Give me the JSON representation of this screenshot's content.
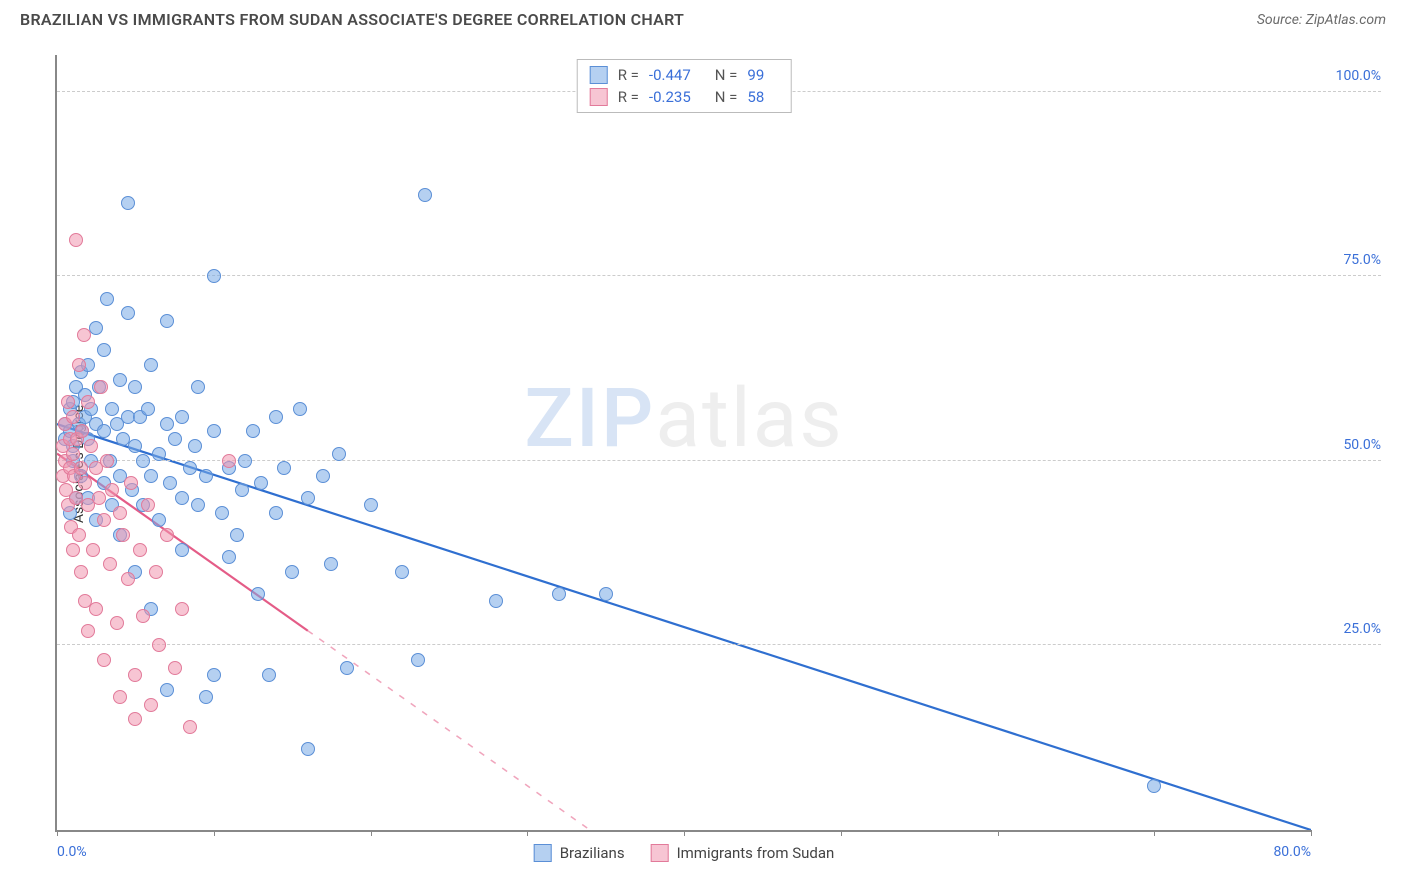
{
  "title": "BRAZILIAN VS IMMIGRANTS FROM SUDAN ASSOCIATE'S DEGREE CORRELATION CHART",
  "source": "Source: ZipAtlas.com",
  "ylabel": "Associate's Degree",
  "watermark_a": "ZIP",
  "watermark_b": "atlas",
  "chart": {
    "type": "scatter",
    "xlim": [
      0,
      80
    ],
    "ylim": [
      0,
      105
    ],
    "xticks": [
      0,
      10,
      20,
      30,
      40,
      50,
      60,
      70,
      80
    ],
    "xlabels_shown": {
      "0": "0.0%",
      "80": "80.0%"
    },
    "yticks": [
      25,
      50,
      75,
      100
    ],
    "ylabels": {
      "25": "25.0%",
      "50": "50.0%",
      "75": "75.0%",
      "100": "100.0%"
    },
    "background": "#ffffff",
    "grid_color": "#cccccc",
    "axis_color": "#888888",
    "tick_label_color": "#3a6fd8",
    "series": [
      {
        "name": "Brazilians",
        "color_fill": "rgba(120,170,230,0.55)",
        "color_stroke": "#5b8fd6",
        "marker_size": 14,
        "trend": {
          "x1": 0,
          "y1": 55,
          "x2": 80,
          "y2": 0,
          "solid_until_x": 80,
          "color": "#2f6fd0",
          "width": 2.2
        },
        "R": "-0.447",
        "N": "99",
        "points": [
          [
            0.5,
            55
          ],
          [
            0.5,
            53
          ],
          [
            0.8,
            57
          ],
          [
            0.8,
            54
          ],
          [
            1,
            58
          ],
          [
            1,
            52
          ],
          [
            1,
            50
          ],
          [
            1.2,
            60
          ],
          [
            1.2,
            45
          ],
          [
            1.4,
            55
          ],
          [
            1.5,
            62
          ],
          [
            1.5,
            48
          ],
          [
            1.6,
            54
          ],
          [
            1.8,
            56
          ],
          [
            1.8,
            59
          ],
          [
            2,
            53
          ],
          [
            2,
            63
          ],
          [
            2,
            45
          ],
          [
            2.2,
            57
          ],
          [
            2.2,
            50
          ],
          [
            2.5,
            68
          ],
          [
            2.5,
            55
          ],
          [
            2.5,
            42
          ],
          [
            2.7,
            60
          ],
          [
            3,
            65
          ],
          [
            3,
            54
          ],
          [
            3,
            47
          ],
          [
            3.2,
            72
          ],
          [
            3.4,
            50
          ],
          [
            3.5,
            57
          ],
          [
            3.5,
            44
          ],
          [
            3.8,
            55
          ],
          [
            4,
            61
          ],
          [
            4,
            48
          ],
          [
            4,
            40
          ],
          [
            4.2,
            53
          ],
          [
            4.5,
            85
          ],
          [
            4.5,
            70
          ],
          [
            4.5,
            56
          ],
          [
            4.8,
            46
          ],
          [
            5,
            60
          ],
          [
            5,
            52
          ],
          [
            5,
            35
          ],
          [
            5.3,
            56
          ],
          [
            5.5,
            50
          ],
          [
            5.5,
            44
          ],
          [
            5.8,
            57
          ],
          [
            6,
            63
          ],
          [
            6,
            48
          ],
          [
            6,
            30
          ],
          [
            6.5,
            51
          ],
          [
            6.5,
            42
          ],
          [
            7,
            55
          ],
          [
            7,
            69
          ],
          [
            7,
            19
          ],
          [
            7.2,
            47
          ],
          [
            7.5,
            53
          ],
          [
            8,
            56
          ],
          [
            8,
            45
          ],
          [
            8,
            38
          ],
          [
            8.5,
            49
          ],
          [
            8.8,
            52
          ],
          [
            9,
            60
          ],
          [
            9,
            44
          ],
          [
            9.5,
            18
          ],
          [
            9.5,
            48
          ],
          [
            10,
            75
          ],
          [
            10,
            54
          ],
          [
            10,
            21
          ],
          [
            10.5,
            43
          ],
          [
            11,
            49
          ],
          [
            11,
            37
          ],
          [
            11.5,
            40
          ],
          [
            11.8,
            46
          ],
          [
            12,
            50
          ],
          [
            12.5,
            54
          ],
          [
            12.8,
            32
          ],
          [
            13,
            47
          ],
          [
            13.5,
            21
          ],
          [
            14,
            56
          ],
          [
            14,
            43
          ],
          [
            14.5,
            49
          ],
          [
            15,
            35
          ],
          [
            15.5,
            57
          ],
          [
            16,
            45
          ],
          [
            16,
            11
          ],
          [
            17,
            48
          ],
          [
            17.5,
            36
          ],
          [
            18,
            51
          ],
          [
            18.5,
            22
          ],
          [
            20,
            44
          ],
          [
            22,
            35
          ],
          [
            23.5,
            86
          ],
          [
            23,
            23
          ],
          [
            28,
            31
          ],
          [
            32,
            32
          ],
          [
            35,
            32
          ],
          [
            70,
            6
          ],
          [
            0.8,
            43
          ]
        ]
      },
      {
        "name": "Immigrants from Sudan",
        "color_fill": "rgba(240,150,175,0.55)",
        "color_stroke": "#e27a9a",
        "marker_size": 14,
        "trend": {
          "x1": 0,
          "y1": 51,
          "x2": 34,
          "y2": 0,
          "solid_until_x": 16,
          "color": "#e45c87",
          "width": 2.2
        },
        "R": "-0.235",
        "N": "58",
        "points": [
          [
            0.4,
            52
          ],
          [
            0.4,
            48
          ],
          [
            0.5,
            55
          ],
          [
            0.5,
            50
          ],
          [
            0.6,
            46
          ],
          [
            0.7,
            58
          ],
          [
            0.7,
            44
          ],
          [
            0.8,
            53
          ],
          [
            0.8,
            49
          ],
          [
            0.9,
            41
          ],
          [
            1,
            56
          ],
          [
            1,
            51
          ],
          [
            1,
            38
          ],
          [
            1.1,
            48
          ],
          [
            1.2,
            80
          ],
          [
            1.2,
            45
          ],
          [
            1.3,
            53
          ],
          [
            1.4,
            63
          ],
          [
            1.4,
            40
          ],
          [
            1.5,
            49
          ],
          [
            1.5,
            35
          ],
          [
            1.6,
            54
          ],
          [
            1.7,
            67
          ],
          [
            1.8,
            47
          ],
          [
            1.8,
            31
          ],
          [
            2,
            58
          ],
          [
            2,
            44
          ],
          [
            2,
            27
          ],
          [
            2.2,
            52
          ],
          [
            2.3,
            38
          ],
          [
            2.5,
            49
          ],
          [
            2.5,
            30
          ],
          [
            2.7,
            45
          ],
          [
            2.8,
            60
          ],
          [
            3,
            42
          ],
          [
            3,
            23
          ],
          [
            3.2,
            50
          ],
          [
            3.4,
            36
          ],
          [
            3.5,
            46
          ],
          [
            3.8,
            28
          ],
          [
            4,
            43
          ],
          [
            4,
            18
          ],
          [
            4.2,
            40
          ],
          [
            4.5,
            34
          ],
          [
            4.7,
            47
          ],
          [
            5,
            21
          ],
          [
            5,
            15
          ],
          [
            5.3,
            38
          ],
          [
            5.5,
            29
          ],
          [
            5.8,
            44
          ],
          [
            6,
            17
          ],
          [
            6.3,
            35
          ],
          [
            6.5,
            25
          ],
          [
            7,
            40
          ],
          [
            7.5,
            22
          ],
          [
            8,
            30
          ],
          [
            8.5,
            14
          ],
          [
            11,
            50
          ]
        ]
      }
    ]
  },
  "legend_bottom": [
    {
      "label": "Brazilians",
      "fill": "rgba(120,170,230,0.55)",
      "stroke": "#5b8fd6"
    },
    {
      "label": "Immigrants from Sudan",
      "fill": "rgba(240,150,175,0.55)",
      "stroke": "#e27a9a"
    }
  ]
}
